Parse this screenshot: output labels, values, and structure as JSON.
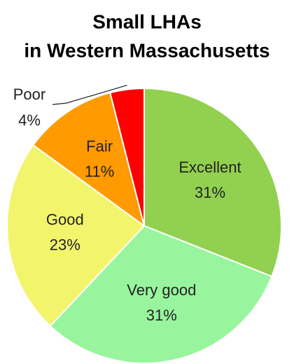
{
  "chart_data": {
    "type": "pie",
    "title": [
      "Small LHAs",
      "in Western Massachusetts"
    ],
    "categories": [
      "Excellent",
      "Very good",
      "Good",
      "Fair",
      "Poor"
    ],
    "values": [
      31,
      31,
      23,
      11,
      4
    ],
    "value_labels": [
      "31%",
      "31%",
      "23%",
      "11%",
      "4%"
    ],
    "colors": [
      "#92d050",
      "#98f59e",
      "#f2f56c",
      "#ff9a00",
      "#ff0000"
    ]
  }
}
